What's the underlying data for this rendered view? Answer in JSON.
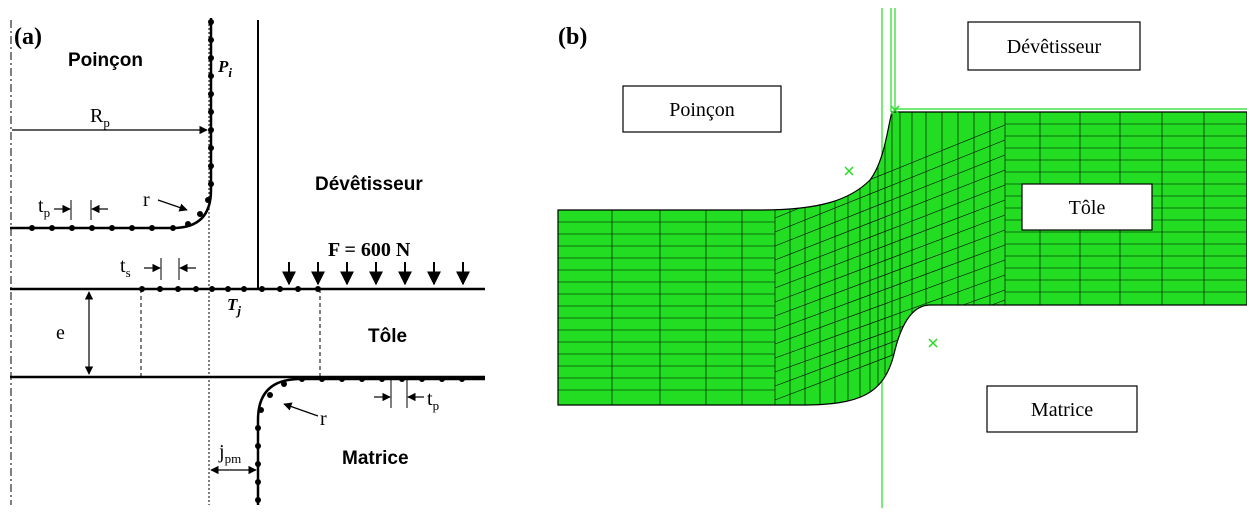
{
  "panel_a": {
    "tag": "(a)",
    "poincon": "Poinçon",
    "devetisseur": "Dévêtisseur",
    "tole": "Tôle",
    "matrice": "Matrice",
    "force": "F = 600 N",
    "rp_main": "R",
    "rp_sub": "p",
    "tp_main": "t",
    "tp_sub": "p",
    "ts_main": "t",
    "ts_sub": "s",
    "r_label": "r",
    "e_label": "e",
    "jpm_main": "j",
    "jpm_sub": "pm",
    "pi_main": "P",
    "pi_sub": "i",
    "tj_main": "T",
    "tj_sub": "j"
  },
  "panel_b": {
    "tag": "(b)",
    "devetisseur": "Dévêtisseur",
    "poincon": "Poinçon",
    "tole": "Tôle",
    "matrice": "Matrice",
    "mesh_color": "#22dd22",
    "mesh_line_color": "#000000"
  }
}
